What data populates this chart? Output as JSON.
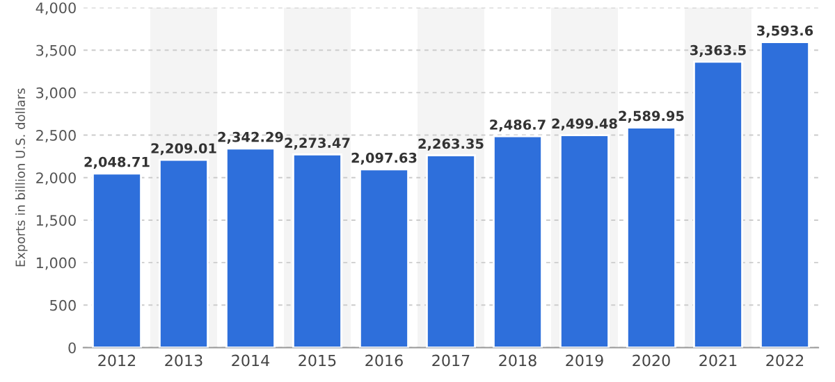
{
  "chart_data": {
    "type": "bar",
    "ylabel": "Exports in billion U.S. dollars",
    "categories": [
      "2012",
      "2013",
      "2014",
      "2015",
      "2016",
      "2017",
      "2018",
      "2019",
      "2020",
      "2021",
      "2022"
    ],
    "values": [
      2048.71,
      2209.01,
      2342.29,
      2273.47,
      2097.63,
      2263.35,
      2486.7,
      2499.48,
      2589.95,
      3363.5,
      3593.6
    ],
    "value_labels": [
      "2,048.71",
      "2,209.01",
      "2,342.29",
      "2,273.47",
      "2,097.63",
      "2,263.35",
      "2,486.7",
      "2,499.48",
      "2,589.95",
      "3,363.5",
      "3,593.6"
    ],
    "color": "#2e6fdb",
    "ylim": [
      0,
      4000
    ],
    "yticks": [
      {
        "value": 0,
        "label": "0"
      },
      {
        "value": 500,
        "label": "500"
      },
      {
        "value": 1000,
        "label": "1,000"
      },
      {
        "value": 1500,
        "label": "1,500"
      },
      {
        "value": 2000,
        "label": "2,000"
      },
      {
        "value": 2500,
        "label": "2,500"
      },
      {
        "value": 3000,
        "label": "3,000"
      },
      {
        "value": 3500,
        "label": "3,500"
      },
      {
        "value": 4000,
        "label": "4,000"
      }
    ],
    "grid": "y",
    "bands": [
      {
        "axis": "x",
        "from": "2013",
        "to": "2013",
        "color": "#f4f4f4"
      },
      {
        "axis": "x",
        "from": "2015",
        "to": "2015",
        "color": "#f4f4f4"
      },
      {
        "axis": "x",
        "from": "2017",
        "to": "2017",
        "color": "#f4f4f4"
      },
      {
        "axis": "x",
        "from": "2019",
        "to": "2019",
        "color": "#f4f4f4"
      },
      {
        "axis": "x",
        "from": "2021",
        "to": "2021",
        "color": "#f4f4f4"
      }
    ]
  }
}
